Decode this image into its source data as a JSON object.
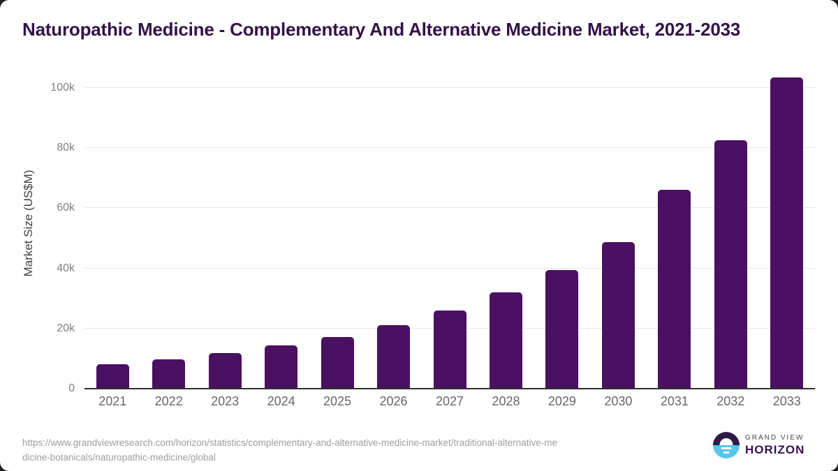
{
  "title": "Naturopathic Medicine - Complementary And Alternative Medicine Market, 2021-2033",
  "colors": {
    "bar": "#4a1061",
    "title_text": "#331248",
    "axis_line": "#2e2e2e",
    "gridline": "#e7e7e7",
    "x_tick_label": "#666666",
    "y_tick_label": "#7f7f7f",
    "y_axis_title": "#3f3f3f",
    "footer_text": "#9d9d9d",
    "logo_purple": "#2e1a47",
    "logo_blue": "#57c5ec",
    "logo_horizon_text": "#3a1053"
  },
  "chart_data": {
    "type": "bar",
    "title": "Naturopathic Medicine - Complementary And Alternative Medicine Market, 2021-2033",
    "xlabel": "",
    "ylabel": "Market Size (US$M)",
    "categories": [
      "2021",
      "2022",
      "2023",
      "2024",
      "2025",
      "2026",
      "2027",
      "2028",
      "2029",
      "2030",
      "2031",
      "2032",
      "2033"
    ],
    "values": [
      8100,
      9700,
      11800,
      14300,
      17200,
      21200,
      26000,
      32100,
      39500,
      48700,
      66200,
      82600,
      103400
    ],
    "series_name": "Market Size (US$M)",
    "ylim": [
      0,
      106000
    ],
    "yticks": [
      {
        "value": 0,
        "label": "0"
      },
      {
        "value": 20000,
        "label": "20k"
      },
      {
        "value": 40000,
        "label": "40k"
      },
      {
        "value": 60000,
        "label": "60k"
      },
      {
        "value": 80000,
        "label": "80k"
      },
      {
        "value": 100000,
        "label": "100k"
      }
    ],
    "grid": "horizontal",
    "legend": "none",
    "bar_color": "#4a1061"
  },
  "footer": {
    "source_url_lines": [
      "https://www.grandviewresearch.com/horizon/statistics/complementary-and-alternative-medicine-market/traditional-alternative-me",
      "dicine-botanicals/naturopathic-medicine/global"
    ],
    "logo": {
      "brand_top": "GRAND VIEW",
      "brand_bottom": "HORIZON"
    }
  }
}
